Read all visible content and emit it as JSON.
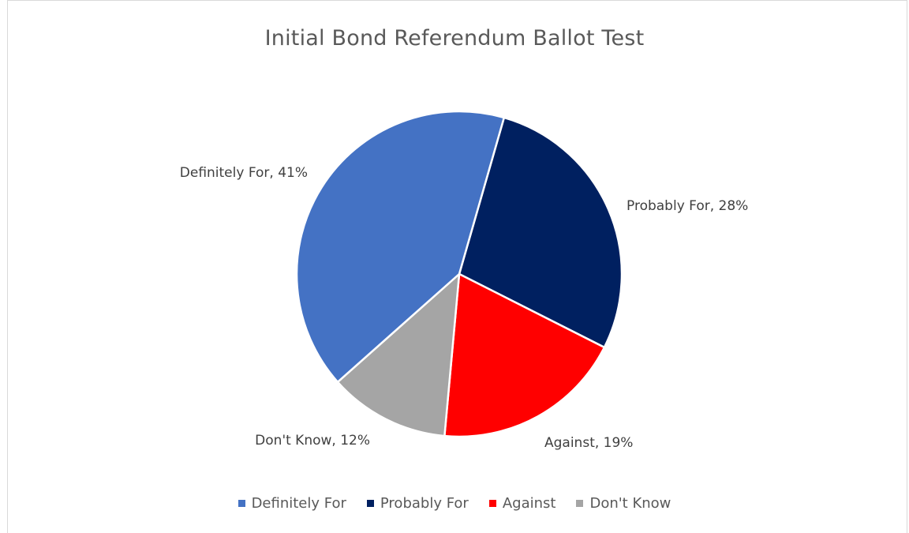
{
  "chart_data": {
    "type": "pie",
    "title": "Initial Bond Referendum Ballot Test",
    "legend_position": "bottom",
    "slices": [
      {
        "name": "Definitely For",
        "value": 41,
        "label": "Definitely For, 41%",
        "color": "#4472C4"
      },
      {
        "name": "Probably For",
        "value": 28,
        "label": "Probably For, 28%",
        "color": "#002060"
      },
      {
        "name": "Against",
        "value": 19,
        "label": "Against, 19%",
        "color": "#FF0000"
      },
      {
        "name": "Don't Know",
        "value": 12,
        "label": "Don't Know, 12%",
        "color": "#A5A5A5"
      }
    ]
  }
}
